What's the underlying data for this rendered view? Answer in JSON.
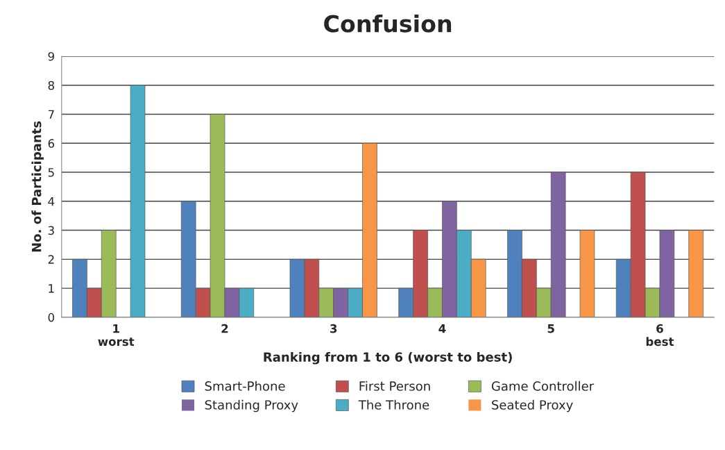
{
  "chart_data": {
    "type": "bar",
    "title": "Confusion",
    "xlabel": "Ranking from 1 to 6 (worst to best)",
    "ylabel": "No. of Participants",
    "categories": [
      "1\nworst",
      "2",
      "3",
      "4",
      "5",
      "6\nbest"
    ],
    "series": [
      {
        "name": "Smart-Phone",
        "color": "#4f81bd",
        "values": [
          2,
          4,
          2,
          1,
          3,
          2
        ]
      },
      {
        "name": "First Person",
        "color": "#c0504d",
        "values": [
          1,
          1,
          2,
          3,
          2,
          5
        ]
      },
      {
        "name": "Game Controller",
        "color": "#9bbb59",
        "values": [
          3,
          7,
          1,
          1,
          1,
          1
        ]
      },
      {
        "name": "Standing Proxy",
        "color": "#8064a2",
        "values": [
          0,
          1,
          1,
          4,
          5,
          3
        ]
      },
      {
        "name": "The Throne",
        "color": "#4bacc6",
        "values": [
          8,
          1,
          1,
          3,
          0,
          0
        ]
      },
      {
        "name": "Seated Proxy",
        "color": "#f79646",
        "values": [
          0,
          0,
          6,
          2,
          3,
          3
        ]
      }
    ],
    "ylim": [
      0,
      9
    ],
    "yticks": [
      0,
      1,
      2,
      3,
      4,
      5,
      6,
      7,
      8,
      9
    ],
    "grid": "y",
    "legend": "bottom"
  }
}
